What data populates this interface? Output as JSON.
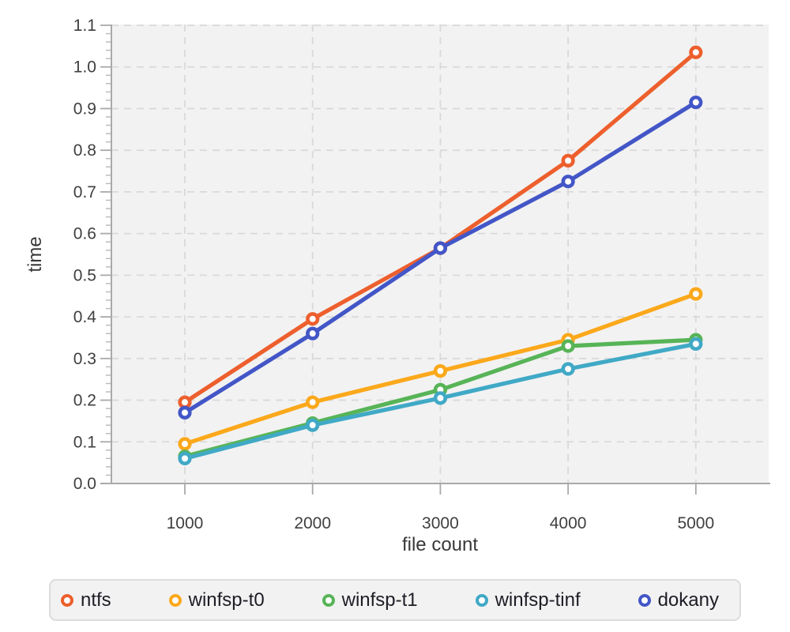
{
  "chart_data": {
    "type": "line",
    "title": "",
    "xlabel": "file count",
    "ylabel": "time",
    "x": [
      1000,
      2000,
      3000,
      4000,
      5000
    ],
    "xtick_labels": [
      "1000",
      "2000",
      "3000",
      "4000",
      "5000"
    ],
    "yticks": [
      0,
      0.1,
      0.2,
      0.3,
      0.4,
      0.5,
      0.6,
      0.7,
      0.8,
      0.9,
      1.0,
      1.1
    ],
    "ytick_labels": [
      "0.0",
      "0.1",
      "0.2",
      "0.3",
      "0.4",
      "0.5",
      "0.6",
      "0.7",
      "0.8",
      "0.9",
      "1.0",
      "1.1"
    ],
    "xlim": [
      425,
      5570
    ],
    "ylim": [
      0,
      1.1
    ],
    "y_minor_tick_step": 0.02,
    "grid": "dashed",
    "marker": "open-circle",
    "legend_position": "bottom",
    "series": [
      {
        "name": "ntfs",
        "color": "#ed5f2d",
        "values": [
          0.195,
          0.395,
          0.565,
          0.775,
          1.035
        ]
      },
      {
        "name": "winfsp-t0",
        "color": "#fba81b",
        "values": [
          0.095,
          0.195,
          0.27,
          0.345,
          0.455
        ]
      },
      {
        "name": "winfsp-t1",
        "color": "#57b457",
        "values": [
          0.065,
          0.145,
          0.225,
          0.33,
          0.345
        ]
      },
      {
        "name": "winfsp-tinf",
        "color": "#40a9c6",
        "values": [
          0.06,
          0.14,
          0.205,
          0.275,
          0.335
        ]
      },
      {
        "name": "dokany",
        "color": "#4356c7",
        "values": [
          0.17,
          0.36,
          0.565,
          0.725,
          0.915
        ]
      }
    ]
  },
  "styles": {
    "page_bg": "#ffffff",
    "plot_bg": "#f2f2f2",
    "grid_color": "#d9d9d9",
    "axis_color": "#a9a9a9",
    "minor_tick_color": "#bcbcbc",
    "tick_label_color": "#3f3f3f",
    "axis_title_color": "#383838",
    "legend_bg": "#f2f2f2",
    "legend_border": "#dcdcdc",
    "legend_text": "#1d1d26"
  }
}
